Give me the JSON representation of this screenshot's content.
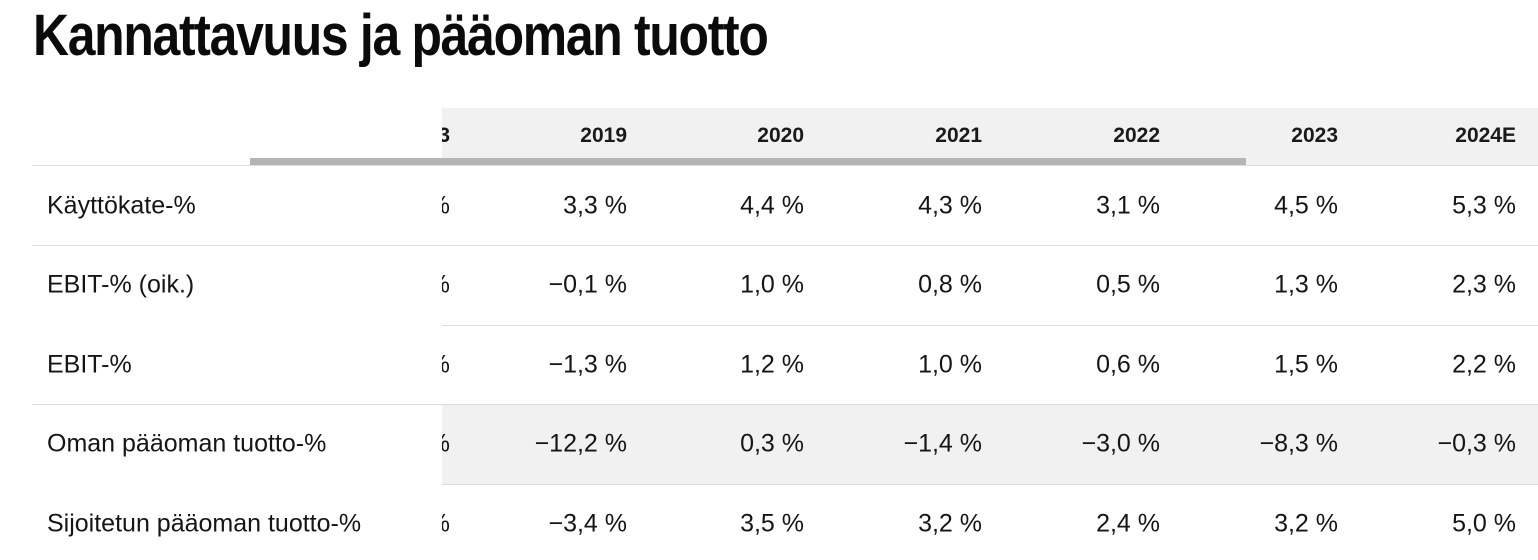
{
  "title": "Kannattavuus ja pääoman tuotto",
  "table": {
    "clipped_header": "3",
    "clipped_cell": "%",
    "years": [
      "2019",
      "2020",
      "2021",
      "2022",
      "2023",
      "2024E"
    ],
    "rows": [
      {
        "label": "Käyttökate-%",
        "values": [
          "3,3 %",
          "4,4 %",
          "4,3 %",
          "3,1 %",
          "4,5 %",
          "5,3 %"
        ],
        "shaded": false
      },
      {
        "label": "EBIT-% (oik.)",
        "values": [
          "−0,1 %",
          "1,0 %",
          "0,8 %",
          "0,5 %",
          "1,3 %",
          "2,3 %"
        ],
        "shaded": false
      },
      {
        "label": "EBIT-%",
        "values": [
          "−1,3 %",
          "1,2 %",
          "1,0 %",
          "0,6 %",
          "1,5 %",
          "2,2 %"
        ],
        "shaded": false
      },
      {
        "label": "Oman pääoman tuotto-%",
        "values": [
          "−12,2 %",
          "0,3 %",
          "−1,4 %",
          "−3,0 %",
          "−8,3 %",
          "−0,3 %"
        ],
        "shaded": true
      },
      {
        "label": "Sijoitetun pääoman tuotto-%",
        "values": [
          "−3,4 %",
          "3,5 %",
          "3,2 %",
          "2,4 %",
          "3,2 %",
          "5,0 %"
        ],
        "shaded": false
      }
    ]
  },
  "colors": {
    "header_bg": "#f1f1f1",
    "shaded_row_bg": "#f1f1f1",
    "scrollbar": "#b5b5b5",
    "divider": "#dcdcdc"
  }
}
